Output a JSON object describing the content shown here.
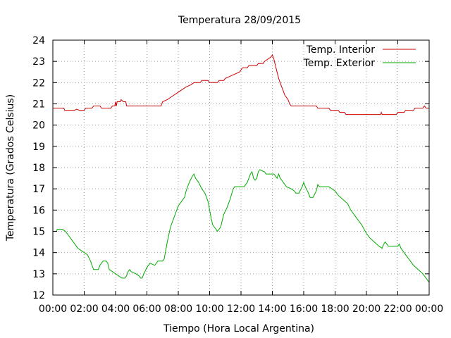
{
  "chart_data": {
    "type": "line",
    "title": "Temperatura 28/09/2015",
    "xlabel": "Tiempo (Hora Local Argentina)",
    "ylabel": "Temperatura (Grados Celsius)",
    "xlim": [
      0,
      24
    ],
    "ylim": [
      12,
      24
    ],
    "xticks": [
      0,
      2,
      4,
      6,
      8,
      10,
      12,
      14,
      16,
      18,
      20,
      22,
      24
    ],
    "xtick_labels": [
      "00:00",
      "02:00",
      "04:00",
      "06:00",
      "08:00",
      "10:00",
      "12:00",
      "14:00",
      "16:00",
      "18:00",
      "20:00",
      "22:00",
      "00:00"
    ],
    "yticks": [
      12,
      13,
      14,
      15,
      16,
      17,
      18,
      19,
      20,
      21,
      22,
      23,
      24
    ],
    "ytick_labels": [
      "12",
      "13",
      "14",
      "15",
      "16",
      "17",
      "18",
      "19",
      "20",
      "21",
      "22",
      "23",
      "24"
    ],
    "grid": true,
    "legend_position": "top-right",
    "series": [
      {
        "name": "Temp. Interior",
        "color": "#cc0000",
        "points": [
          [
            0.0,
            20.8
          ],
          [
            0.7,
            20.8
          ],
          [
            0.75,
            20.7
          ],
          [
            1.4,
            20.7
          ],
          [
            1.5,
            20.75
          ],
          [
            1.7,
            20.7
          ],
          [
            2.0,
            20.7
          ],
          [
            2.1,
            20.8
          ],
          [
            2.5,
            20.8
          ],
          [
            2.6,
            20.9
          ],
          [
            3.0,
            20.9
          ],
          [
            3.1,
            20.8
          ],
          [
            3.7,
            20.8
          ],
          [
            3.8,
            20.9
          ],
          [
            3.95,
            20.9
          ],
          [
            4.0,
            21.1
          ],
          [
            4.05,
            20.9
          ],
          [
            4.1,
            21.1
          ],
          [
            4.3,
            21.1
          ],
          [
            4.35,
            21.2
          ],
          [
            4.5,
            21.1
          ],
          [
            4.65,
            21.1
          ],
          [
            4.7,
            20.9
          ],
          [
            6.9,
            20.9
          ],
          [
            7.0,
            21.1
          ],
          [
            7.3,
            21.2
          ],
          [
            7.6,
            21.35
          ],
          [
            7.9,
            21.5
          ],
          [
            8.2,
            21.65
          ],
          [
            8.5,
            21.8
          ],
          [
            8.8,
            21.9
          ],
          [
            9.0,
            22.0
          ],
          [
            9.4,
            22.0
          ],
          [
            9.5,
            22.1
          ],
          [
            9.9,
            22.1
          ],
          [
            10.0,
            22.0
          ],
          [
            10.5,
            22.0
          ],
          [
            10.6,
            22.1
          ],
          [
            10.9,
            22.1
          ],
          [
            11.0,
            22.2
          ],
          [
            11.3,
            22.3
          ],
          [
            11.6,
            22.4
          ],
          [
            11.9,
            22.5
          ],
          [
            12.1,
            22.7
          ],
          [
            12.4,
            22.7
          ],
          [
            12.5,
            22.8
          ],
          [
            13.0,
            22.8
          ],
          [
            13.1,
            22.9
          ],
          [
            13.4,
            22.9
          ],
          [
            13.5,
            23.0
          ],
          [
            13.7,
            23.1
          ],
          [
            13.9,
            23.2
          ],
          [
            14.0,
            23.3
          ],
          [
            14.1,
            23.1
          ],
          [
            14.2,
            22.8
          ],
          [
            14.4,
            22.2
          ],
          [
            14.6,
            21.8
          ],
          [
            14.8,
            21.4
          ],
          [
            15.0,
            21.2
          ],
          [
            15.1,
            21.0
          ],
          [
            15.2,
            20.9
          ],
          [
            16.8,
            20.9
          ],
          [
            16.9,
            20.8
          ],
          [
            17.6,
            20.8
          ],
          [
            17.7,
            20.7
          ],
          [
            18.2,
            20.7
          ],
          [
            18.3,
            20.6
          ],
          [
            18.6,
            20.6
          ],
          [
            18.7,
            20.5
          ],
          [
            20.0,
            20.5
          ],
          [
            20.9,
            20.5
          ],
          [
            20.95,
            20.6
          ],
          [
            21.0,
            20.5
          ],
          [
            21.9,
            20.5
          ],
          [
            22.0,
            20.6
          ],
          [
            22.4,
            20.6
          ],
          [
            22.5,
            20.7
          ],
          [
            23.0,
            20.7
          ],
          [
            23.1,
            20.8
          ],
          [
            23.6,
            20.8
          ],
          [
            23.7,
            20.9
          ],
          [
            23.8,
            20.8
          ],
          [
            24.0,
            20.8
          ]
        ]
      },
      {
        "name": "Temp. Exterior",
        "color": "#00aa00",
        "points": [
          [
            0.0,
            15.0
          ],
          [
            0.2,
            15.0
          ],
          [
            0.3,
            15.1
          ],
          [
            0.6,
            15.1
          ],
          [
            0.8,
            15.0
          ],
          [
            1.0,
            14.8
          ],
          [
            1.2,
            14.6
          ],
          [
            1.4,
            14.4
          ],
          [
            1.6,
            14.2
          ],
          [
            1.8,
            14.1
          ],
          [
            2.0,
            14.0
          ],
          [
            2.2,
            13.9
          ],
          [
            2.4,
            13.6
          ],
          [
            2.5,
            13.4
          ],
          [
            2.6,
            13.2
          ],
          [
            2.9,
            13.2
          ],
          [
            3.0,
            13.4
          ],
          [
            3.2,
            13.6
          ],
          [
            3.4,
            13.6
          ],
          [
            3.5,
            13.5
          ],
          [
            3.6,
            13.2
          ],
          [
            3.8,
            13.1
          ],
          [
            4.0,
            13.0
          ],
          [
            4.2,
            12.9
          ],
          [
            4.4,
            12.8
          ],
          [
            4.6,
            12.8
          ],
          [
            4.7,
            12.9
          ],
          [
            4.8,
            13.1
          ],
          [
            4.9,
            13.2
          ],
          [
            5.0,
            13.1
          ],
          [
            5.3,
            13.0
          ],
          [
            5.5,
            12.9
          ],
          [
            5.6,
            12.8
          ],
          [
            5.7,
            12.8
          ],
          [
            5.8,
            13.0
          ],
          [
            6.0,
            13.3
          ],
          [
            6.2,
            13.5
          ],
          [
            6.5,
            13.4
          ],
          [
            6.7,
            13.6
          ],
          [
            7.0,
            13.6
          ],
          [
            7.1,
            13.7
          ],
          [
            7.2,
            14.1
          ],
          [
            7.3,
            14.5
          ],
          [
            7.5,
            15.2
          ],
          [
            7.8,
            15.8
          ],
          [
            8.0,
            16.2
          ],
          [
            8.2,
            16.4
          ],
          [
            8.4,
            16.6
          ],
          [
            8.5,
            16.9
          ],
          [
            8.7,
            17.3
          ],
          [
            8.9,
            17.6
          ],
          [
            9.0,
            17.7
          ],
          [
            9.1,
            17.5
          ],
          [
            9.3,
            17.3
          ],
          [
            9.5,
            17.0
          ],
          [
            9.7,
            16.8
          ],
          [
            9.9,
            16.4
          ],
          [
            10.0,
            16.0
          ],
          [
            10.1,
            15.6
          ],
          [
            10.2,
            15.3
          ],
          [
            10.4,
            15.1
          ],
          [
            10.5,
            15.0
          ],
          [
            10.7,
            15.2
          ],
          [
            10.8,
            15.5
          ],
          [
            10.9,
            15.8
          ],
          [
            11.1,
            16.1
          ],
          [
            11.3,
            16.5
          ],
          [
            11.5,
            17.0
          ],
          [
            11.6,
            17.1
          ],
          [
            12.2,
            17.1
          ],
          [
            12.4,
            17.3
          ],
          [
            12.6,
            17.7
          ],
          [
            12.7,
            17.8
          ],
          [
            12.8,
            17.5
          ],
          [
            12.9,
            17.4
          ],
          [
            13.0,
            17.5
          ],
          [
            13.1,
            17.8
          ],
          [
            13.2,
            17.9
          ],
          [
            13.5,
            17.8
          ],
          [
            13.6,
            17.7
          ],
          [
            14.1,
            17.7
          ],
          [
            14.2,
            17.6
          ],
          [
            14.3,
            17.5
          ],
          [
            14.4,
            17.7
          ],
          [
            14.5,
            17.5
          ],
          [
            14.7,
            17.3
          ],
          [
            14.9,
            17.1
          ],
          [
            15.2,
            17.0
          ],
          [
            15.4,
            16.9
          ],
          [
            15.5,
            16.8
          ],
          [
            15.7,
            16.8
          ],
          [
            15.9,
            17.1
          ],
          [
            16.0,
            17.3
          ],
          [
            16.1,
            17.1
          ],
          [
            16.3,
            16.8
          ],
          [
            16.4,
            16.6
          ],
          [
            16.6,
            16.6
          ],
          [
            16.8,
            16.9
          ],
          [
            16.9,
            17.2
          ],
          [
            17.0,
            17.1
          ],
          [
            17.6,
            17.1
          ],
          [
            17.8,
            17.0
          ],
          [
            18.0,
            16.9
          ],
          [
            18.2,
            16.7
          ],
          [
            18.5,
            16.5
          ],
          [
            18.8,
            16.3
          ],
          [
            19.0,
            16.0
          ],
          [
            19.2,
            15.8
          ],
          [
            19.4,
            15.6
          ],
          [
            19.7,
            15.3
          ],
          [
            20.0,
            14.9
          ],
          [
            20.2,
            14.7
          ],
          [
            20.5,
            14.5
          ],
          [
            20.8,
            14.3
          ],
          [
            21.0,
            14.2
          ],
          [
            21.1,
            14.4
          ],
          [
            21.2,
            14.5
          ],
          [
            21.4,
            14.3
          ],
          [
            22.0,
            14.3
          ],
          [
            22.1,
            14.4
          ],
          [
            22.2,
            14.2
          ],
          [
            22.5,
            13.9
          ],
          [
            22.8,
            13.6
          ],
          [
            23.0,
            13.4
          ],
          [
            23.3,
            13.2
          ],
          [
            23.6,
            13.0
          ],
          [
            23.8,
            12.8
          ],
          [
            24.0,
            12.6
          ]
        ]
      }
    ]
  }
}
